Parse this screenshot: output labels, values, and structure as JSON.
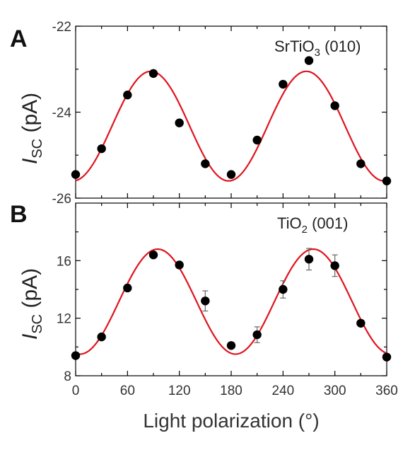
{
  "colors": {
    "fit": "#e0141e",
    "points": "#000000",
    "errorbar": "#666666"
  },
  "x_axis_label": "Light polarization (°)",
  "chart_data": [
    {
      "type": "scatter",
      "panel": "A",
      "annotation": {
        "main": "SrTiO",
        "sub": "3",
        "tail": " (010)"
      },
      "ylabel": {
        "base": "I",
        "sub": "SC",
        "unit": " (pA)"
      },
      "xlim": [
        0,
        360
      ],
      "ylim": [
        -26,
        -22
      ],
      "xticks": [
        0,
        60,
        120,
        180,
        240,
        300,
        360
      ],
      "yticks": [
        -22,
        -24,
        -26
      ],
      "yticks_minor": [
        -23,
        -25
      ],
      "points": [
        {
          "x": 0,
          "y": -25.45,
          "err": 0.0
        },
        {
          "x": 30,
          "y": -24.85,
          "err": 0.0
        },
        {
          "x": 60,
          "y": -23.6,
          "err": 0.0
        },
        {
          "x": 90,
          "y": -23.1,
          "err": 0.0
        },
        {
          "x": 120,
          "y": -24.25,
          "err": 0.0
        },
        {
          "x": 150,
          "y": -25.2,
          "err": 0.05
        },
        {
          "x": 180,
          "y": -25.45,
          "err": 0.0
        },
        {
          "x": 210,
          "y": -24.65,
          "err": 0.0
        },
        {
          "x": 240,
          "y": -23.35,
          "err": 0.0
        },
        {
          "x": 270,
          "y": -22.8,
          "err": 0.0
        },
        {
          "x": 300,
          "y": -23.85,
          "err": 0.0
        },
        {
          "x": 330,
          "y": -25.2,
          "err": 0.05
        },
        {
          "x": 360,
          "y": -25.6,
          "err": 0.0
        }
      ],
      "fit": {
        "offset": -24.325,
        "amplitude": 1.275,
        "phase_deg": 87
      }
    },
    {
      "type": "scatter",
      "panel": "B",
      "annotation": {
        "main": "TiO",
        "sub": "2",
        "tail": " (001)"
      },
      "ylabel": {
        "base": "I",
        "sub": "SC",
        "unit": " (pA)"
      },
      "xlim": [
        0,
        360
      ],
      "ylim": [
        8,
        20
      ],
      "xticks": [
        0,
        60,
        120,
        180,
        240,
        300,
        360
      ],
      "yticks": [
        8,
        12,
        16
      ],
      "yticks_minor": [
        10,
        14,
        18
      ],
      "points": [
        {
          "x": 0,
          "y": 9.4,
          "err": 0.0
        },
        {
          "x": 30,
          "y": 10.7,
          "err": 0.0
        },
        {
          "x": 60,
          "y": 14.1,
          "err": 0.0
        },
        {
          "x": 90,
          "y": 16.4,
          "err": 0.0
        },
        {
          "x": 120,
          "y": 15.7,
          "err": 0.0
        },
        {
          "x": 150,
          "y": 13.2,
          "err": 0.7
        },
        {
          "x": 180,
          "y": 10.1,
          "err": 0.0
        },
        {
          "x": 210,
          "y": 10.85,
          "err": 0.55
        },
        {
          "x": 240,
          "y": 14.0,
          "err": 0.6
        },
        {
          "x": 270,
          "y": 16.1,
          "err": 0.75
        },
        {
          "x": 300,
          "y": 15.65,
          "err": 0.75
        },
        {
          "x": 330,
          "y": 11.65,
          "err": 0.0
        },
        {
          "x": 360,
          "y": 9.3,
          "err": 0.0
        }
      ],
      "fit": {
        "offset": 13.15,
        "amplitude": 3.65,
        "phase_deg": 95
      }
    }
  ]
}
